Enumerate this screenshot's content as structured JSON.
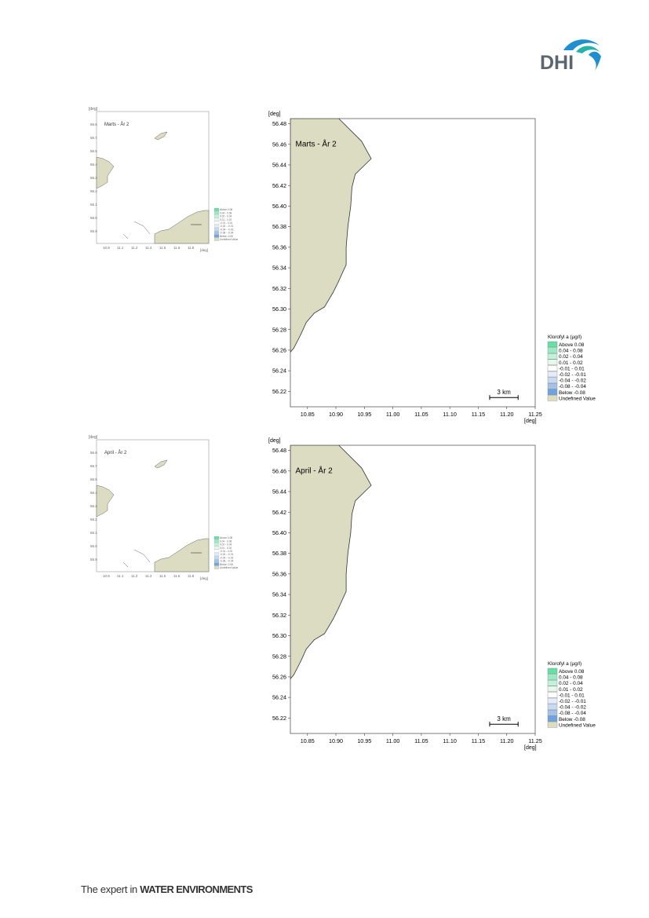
{
  "brand": {
    "logo_text": "DHI",
    "tagline_prefix": "The expert in ",
    "tagline_bold": "WATER ENVIRONMENTS"
  },
  "colors": {
    "land": "#dcdcc2",
    "land_stroke": "#333333",
    "logo_blue": "#1f8fcf",
    "logo_teal": "#22b5a8",
    "logo_gray": "#5b6670"
  },
  "chart_data": [
    {
      "type": "map",
      "title": "Marts - År 2",
      "xlabel": "[deg]",
      "ylabel": "[deg]",
      "xlim": [
        10.82,
        11.25
      ],
      "ylim": [
        56.205,
        56.485
      ],
      "x_ticks": [
        "10.85",
        "10.90",
        "10.95",
        "11.00",
        "11.05",
        "11.10",
        "11.15",
        "11.20",
        "11.25"
      ],
      "y_ticks": [
        "56.22",
        "56.24",
        "56.26",
        "56.28",
        "56.30",
        "56.32",
        "56.34",
        "56.36",
        "56.38",
        "56.40",
        "56.42",
        "56.44",
        "56.46",
        "56.48"
      ],
      "land_polygon": [
        [
          10.82,
          56.485
        ],
        [
          10.905,
          56.485
        ],
        [
          10.945,
          56.463
        ],
        [
          10.962,
          56.446
        ],
        [
          10.934,
          56.431
        ],
        [
          10.928,
          56.418
        ],
        [
          10.926,
          56.4
        ],
        [
          10.921,
          56.38
        ],
        [
          10.918,
          56.36
        ],
        [
          10.918,
          56.343
        ],
        [
          10.904,
          56.326
        ],
        [
          10.895,
          56.316
        ],
        [
          10.88,
          56.302
        ],
        [
          10.862,
          56.296
        ],
        [
          10.848,
          56.287
        ],
        [
          10.838,
          56.275
        ],
        [
          10.826,
          56.262
        ],
        [
          10.82,
          56.258
        ]
      ],
      "scale_bar": "3 km",
      "legend_title": "Klorofyl a (µg/l)",
      "legend": [
        {
          "label": "Above  0.08",
          "color": "#66e0a6"
        },
        {
          "label": " 0.04 -  0.08",
          "color": "#99ebc4"
        },
        {
          "label": " 0.02 -  0.04",
          "color": "#c2f2da"
        },
        {
          "label": " 0.01 -  0.02",
          "color": "#e5f8ee"
        },
        {
          "label": "-0.01 -  0.01",
          "color": "#ffffff"
        },
        {
          "label": "-0.02 - -0.01",
          "color": "#e3ecf8"
        },
        {
          "label": "-0.04 - -0.02",
          "color": "#c6daf2"
        },
        {
          "label": "-0.08 - -0.04",
          "color": "#a2c2ea"
        },
        {
          "label": "Below -0.08",
          "color": "#6fa3e0"
        },
        {
          "label": "Undefined Value",
          "color": "#dcdcc2"
        }
      ]
    },
    {
      "type": "map",
      "title": "April - År 2",
      "xlabel": "[deg]",
      "ylabel": "[deg]",
      "xlim": [
        10.82,
        11.25
      ],
      "ylim": [
        56.205,
        56.485
      ],
      "x_ticks": [
        "10.85",
        "10.90",
        "10.95",
        "11.00",
        "11.05",
        "11.10",
        "11.15",
        "11.20",
        "11.25"
      ],
      "y_ticks": [
        "56.22",
        "56.24",
        "56.26",
        "56.28",
        "56.30",
        "56.32",
        "56.34",
        "56.36",
        "56.38",
        "56.40",
        "56.42",
        "56.44",
        "56.46",
        "56.48"
      ],
      "land_polygon": [
        [
          10.82,
          56.485
        ],
        [
          10.905,
          56.485
        ],
        [
          10.945,
          56.463
        ],
        [
          10.962,
          56.446
        ],
        [
          10.934,
          56.431
        ],
        [
          10.928,
          56.418
        ],
        [
          10.926,
          56.4
        ],
        [
          10.921,
          56.38
        ],
        [
          10.918,
          56.36
        ],
        [
          10.918,
          56.343
        ],
        [
          10.904,
          56.326
        ],
        [
          10.895,
          56.316
        ],
        [
          10.88,
          56.302
        ],
        [
          10.862,
          56.296
        ],
        [
          10.848,
          56.287
        ],
        [
          10.838,
          56.275
        ],
        [
          10.826,
          56.262
        ],
        [
          10.82,
          56.258
        ]
      ],
      "scale_bar": "3 km",
      "legend_title": "Klorofyl a (µg/l)",
      "legend": [
        {
          "label": "Above  0.08",
          "color": "#66e0a6"
        },
        {
          "label": " 0.04 -  0.08",
          "color": "#99ebc4"
        },
        {
          "label": " 0.02 -  0.04",
          "color": "#c2f2da"
        },
        {
          "label": " 0.01 -  0.02",
          "color": "#e5f8ee"
        },
        {
          "label": "-0.01 -  0.01",
          "color": "#ffffff"
        },
        {
          "label": "-0.02 - -0.01",
          "color": "#e3ecf8"
        },
        {
          "label": "-0.04 - -0.02",
          "color": "#c6daf2"
        },
        {
          "label": "-0.08 - -0.04",
          "color": "#a2c2ea"
        },
        {
          "label": "Below -0.08",
          "color": "#6fa3e0"
        },
        {
          "label": "Undefined Value",
          "color": "#dcdcc2"
        }
      ]
    }
  ],
  "thumbnails": [
    {
      "title": "Marts - År 2"
    },
    {
      "title": "April - År 2"
    }
  ]
}
